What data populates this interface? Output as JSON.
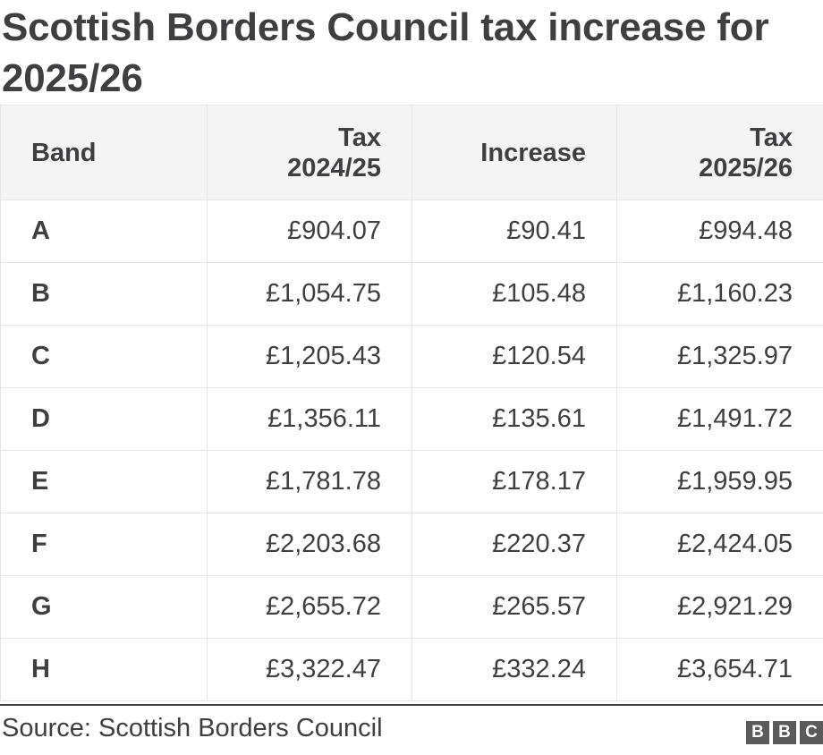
{
  "title": "Scottish Borders Council tax increase for 2025/26",
  "chart_data": {
    "type": "table",
    "columns": [
      "Band",
      "Tax 2024/25",
      "Increase",
      "Tax 2025/26"
    ],
    "header": {
      "band": "Band",
      "tax2024_line1": "Tax",
      "tax2024_line2": "2024/25",
      "increase": "Increase",
      "tax2025_line1": "Tax",
      "tax2025_line2": "2025/26"
    },
    "rows": [
      {
        "band": "A",
        "tax2024": "£904.07",
        "increase": "£90.41",
        "tax2025": "£994.48"
      },
      {
        "band": "B",
        "tax2024": "£1,054.75",
        "increase": "£105.48",
        "tax2025": "£1,160.23"
      },
      {
        "band": "C",
        "tax2024": "£1,205.43",
        "increase": "£120.54",
        "tax2025": "£1,325.97"
      },
      {
        "band": "D",
        "tax2024": "£1,356.11",
        "increase": "£135.61",
        "tax2025": "£1,491.72"
      },
      {
        "band": "E",
        "tax2024": "£1,781.78",
        "increase": "£178.17",
        "tax2025": "£1,959.95"
      },
      {
        "band": "F",
        "tax2024": "£2,203.68",
        "increase": "£220.37",
        "tax2025": "£2,424.05"
      },
      {
        "band": "G",
        "tax2024": "£2,655.72",
        "increase": "£265.57",
        "tax2025": "£2,921.29"
      },
      {
        "band": "H",
        "tax2024": "£3,322.47",
        "increase": "£332.24",
        "tax2025": "£3,654.71"
      }
    ]
  },
  "source": "Source: Scottish Borders Council",
  "logo": {
    "letters": [
      "B",
      "B",
      "C"
    ],
    "box_color": "#5a5a5a"
  }
}
